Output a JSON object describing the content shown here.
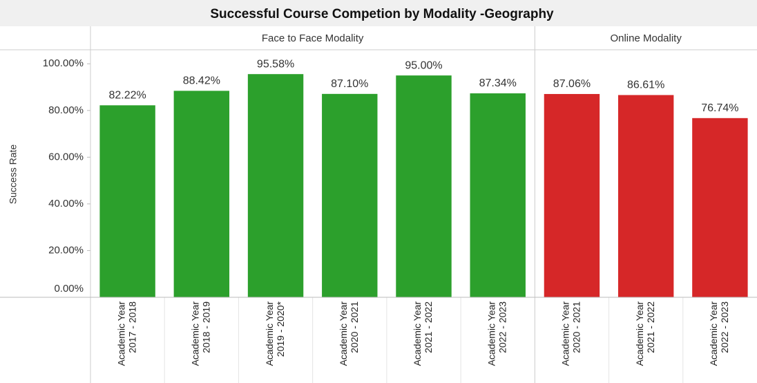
{
  "chart_data": {
    "type": "bar",
    "title": "Successful Course Competion by Modality -Geography",
    "y_label": "Success Rate",
    "ylim": [
      0,
      106
    ],
    "yticks": [
      {
        "value": 0,
        "label": "0.00%"
      },
      {
        "value": 20,
        "label": "20.00%"
      },
      {
        "value": 40,
        "label": "40.00%"
      },
      {
        "value": 60,
        "label": "60.00%"
      },
      {
        "value": 80,
        "label": "80.00%"
      },
      {
        "value": 100,
        "label": "100.00%"
      }
    ],
    "panels": [
      {
        "name": "Face to Face Modality",
        "color": "#2ca02c",
        "categories": [
          [
            "Academic Year",
            "2017 - 2018"
          ],
          [
            "Academic Year",
            "2018 - 2019"
          ],
          [
            "Academic Year",
            "2019 - 2020*"
          ],
          [
            "Academic Year",
            "2020 - 2021"
          ],
          [
            "Academic Year",
            "2021 - 2022"
          ],
          [
            "Academic Year",
            "2022 - 2023"
          ]
        ],
        "values": [
          82.22,
          88.42,
          95.58,
          87.1,
          95.0,
          87.34
        ],
        "value_labels": [
          "82.22%",
          "88.42%",
          "95.58%",
          "87.10%",
          "95.00%",
          "87.34%"
        ]
      },
      {
        "name": "Online Modality",
        "color": "#d62728",
        "categories": [
          [
            "Academic Year",
            "2020 - 2021"
          ],
          [
            "Academic Year",
            "2021 - 2022"
          ],
          [
            "Academic Year",
            "2022 - 2023"
          ]
        ],
        "values": [
          87.06,
          86.61,
          76.74
        ],
        "value_labels": [
          "87.06%",
          "86.61%",
          "76.74%"
        ]
      }
    ]
  }
}
